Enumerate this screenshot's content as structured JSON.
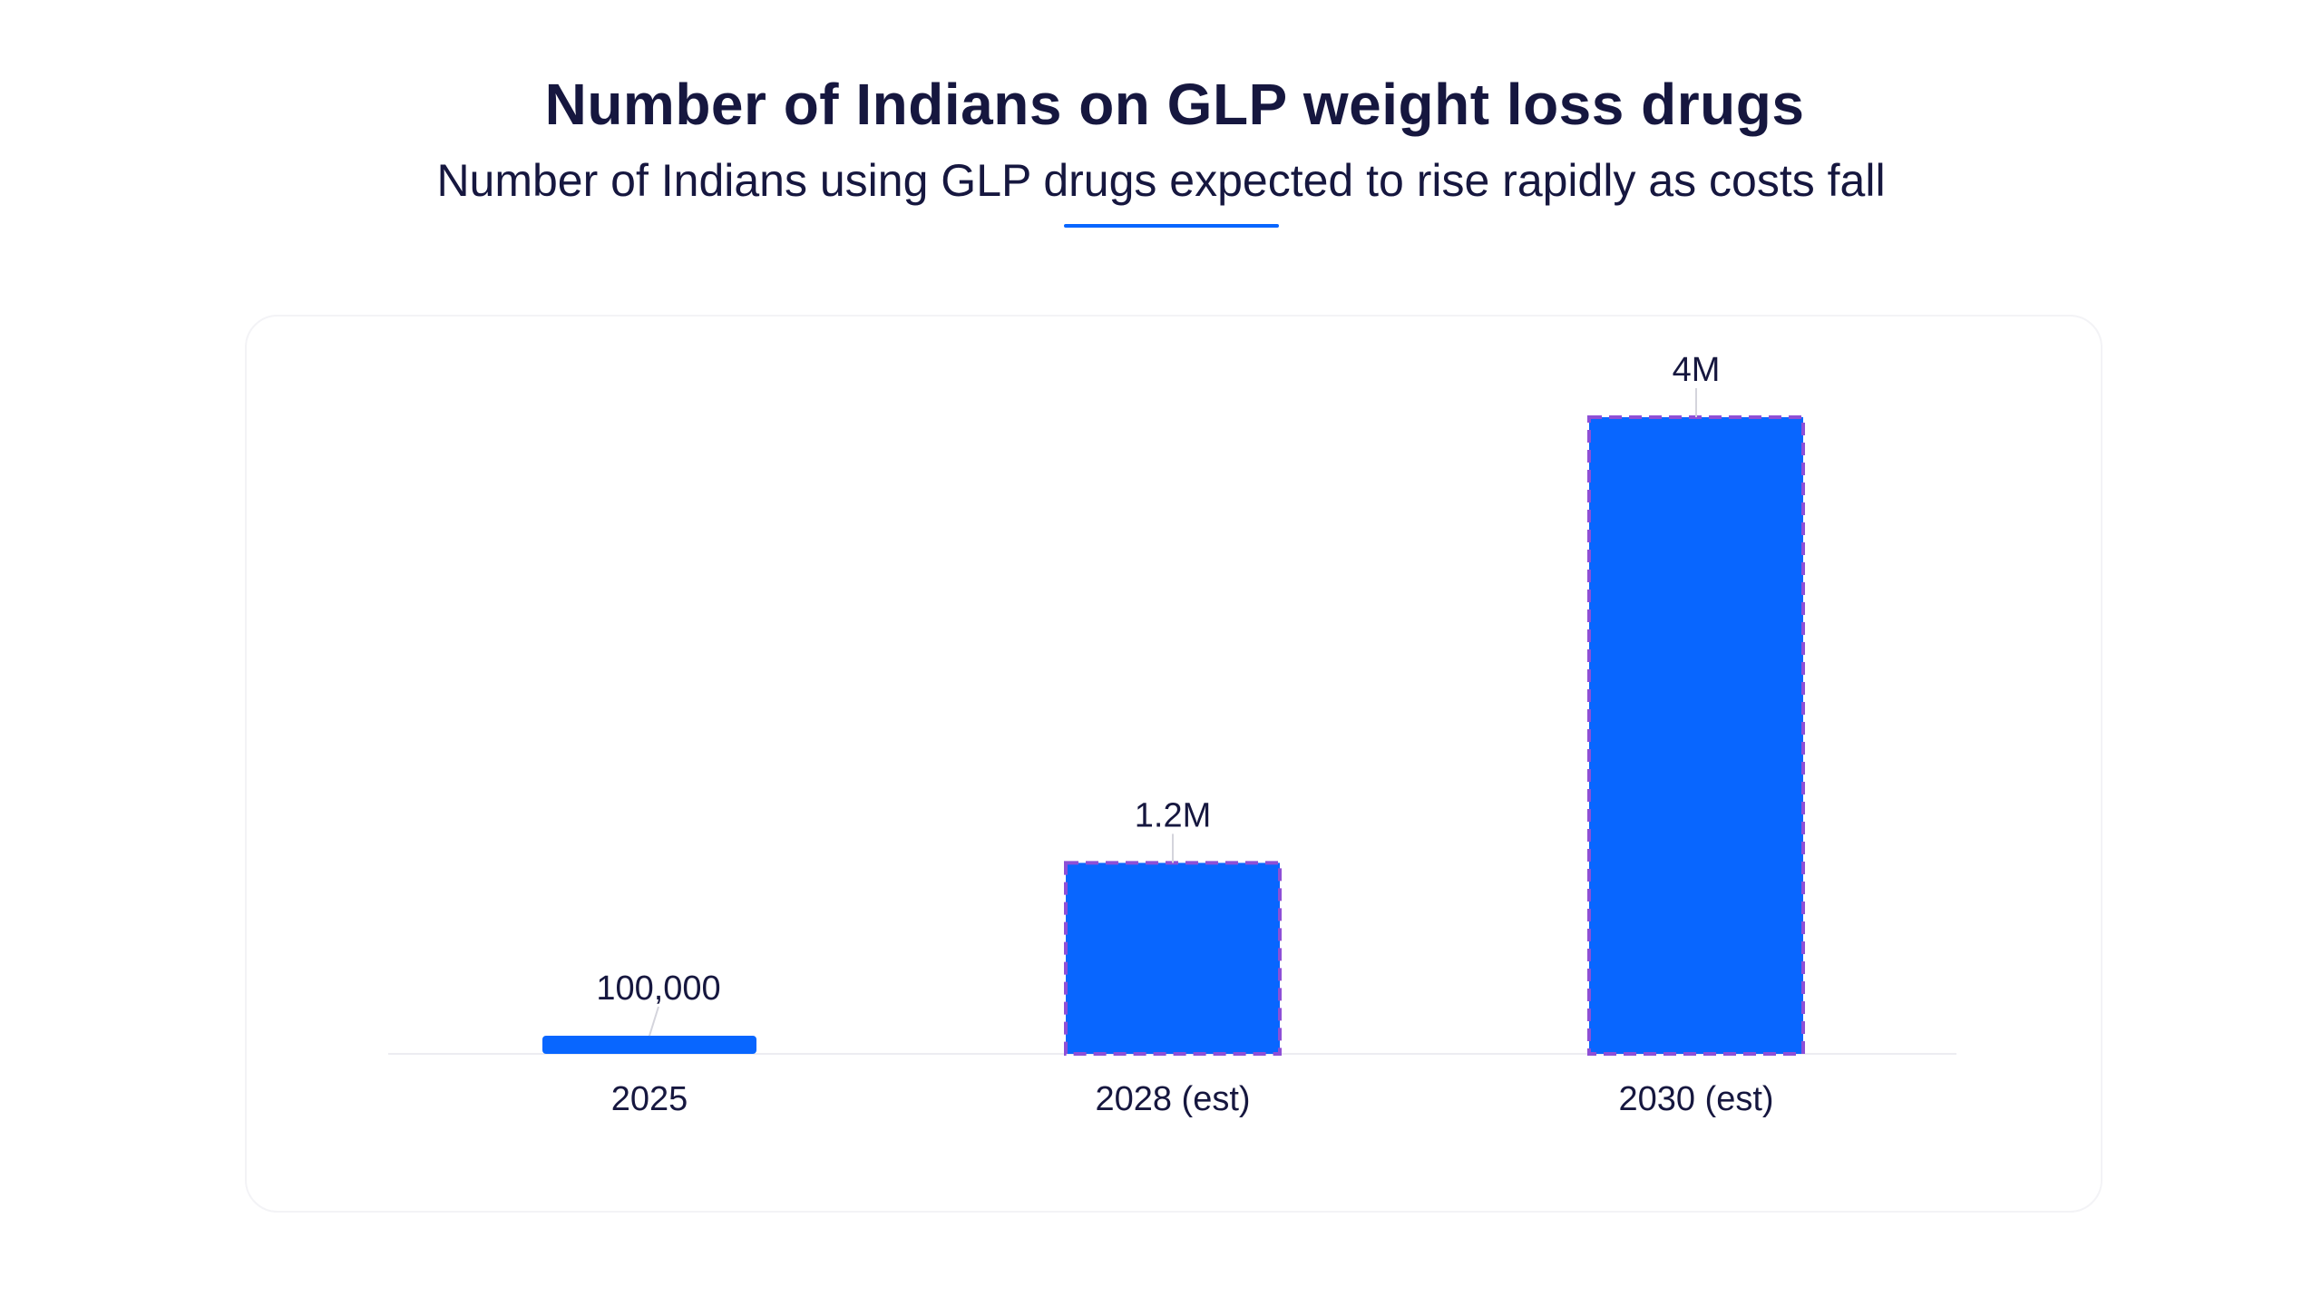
{
  "header": {
    "title": "Number of Indians on GLP weight loss drugs",
    "subtitle": "Number of Indians using GLP drugs expected to rise rapidly as costs fall"
  },
  "colors": {
    "bar": "#0866ff",
    "bar_outline": "#8e4fd6",
    "text": "#16173f",
    "accent_underline": "#0866ff"
  },
  "chart_data": {
    "type": "bar",
    "title": "Number of Indians on GLP weight loss drugs",
    "subtitle": "Number of Indians using GLP drugs expected to rise rapidly as costs fall",
    "categories": [
      "2025",
      "2028 (est)",
      "2030 (est)"
    ],
    "values": [
      100000,
      1200000,
      4000000
    ],
    "data_labels": [
      "100,000",
      "1.2M",
      "4M"
    ],
    "estimated": [
      false,
      true,
      true
    ],
    "xlabel": "",
    "ylabel": "",
    "ylim": [
      0,
      4000000
    ],
    "grid": false,
    "legend": "none"
  }
}
